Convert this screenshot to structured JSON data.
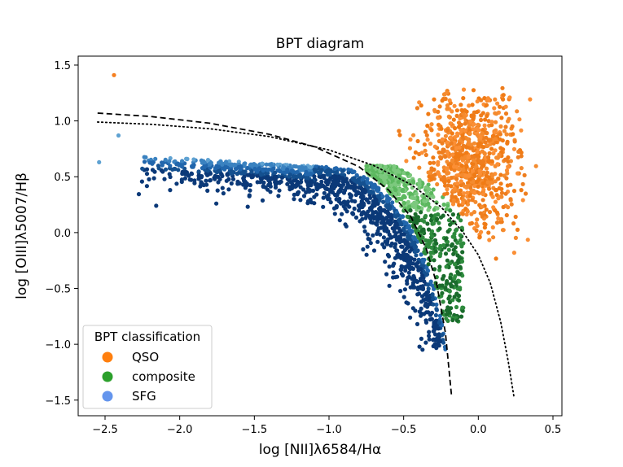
{
  "chart_data": {
    "type": "scatter",
    "title": "BPT diagram",
    "xlabel": "log [NII]λ6584/Hα",
    "ylabel": "log [OIII]λ5007/Hβ",
    "xlim": [
      -2.68,
      0.56
    ],
    "ylim": [
      -1.64,
      1.58
    ],
    "x_ticks": [
      -2.5,
      -2.0,
      -1.5,
      -1.0,
      -0.5,
      0.0,
      0.5
    ],
    "x_tick_labels": [
      "−2.5",
      "−2.0",
      "−1.5",
      "−1.0",
      "−0.5",
      "0.0",
      "0.5"
    ],
    "y_ticks": [
      -1.5,
      -1.0,
      -0.5,
      0.0,
      0.5,
      1.0,
      1.5
    ],
    "y_tick_labels": [
      "−1.5",
      "−1.0",
      "−0.5",
      "0.0",
      "0.5",
      "1.0",
      "1.5"
    ],
    "grid": false,
    "legend": {
      "title": "BPT classification",
      "placement": "lower-left",
      "entries": [
        {
          "label": "QSO",
          "color": "#ff7f0e"
        },
        {
          "label": "composite",
          "color": "#2ca02c"
        },
        {
          "label": "SFG",
          "color": "#6495ed"
        }
      ]
    },
    "lines": [
      {
        "style": "dashed",
        "x": [
          -2.55,
          -2.2,
          -1.8,
          -1.4,
          -1.1,
          -0.8,
          -0.6,
          -0.45,
          -0.35,
          -0.28,
          -0.22,
          -0.18
        ],
        "y": [
          1.07,
          1.04,
          0.98,
          0.88,
          0.77,
          0.59,
          0.38,
          0.14,
          -0.14,
          -0.45,
          -0.9,
          -1.45
        ]
      },
      {
        "style": "dotted",
        "x": [
          -2.55,
          -2.2,
          -1.8,
          -1.4,
          -1.0,
          -0.7,
          -0.45,
          -0.25,
          -0.1,
          0.0,
          0.08,
          0.15,
          0.2,
          0.24
        ],
        "y": [
          0.99,
          0.97,
          0.93,
          0.86,
          0.74,
          0.6,
          0.43,
          0.23,
          0.0,
          -0.2,
          -0.45,
          -0.8,
          -1.15,
          -1.48
        ]
      }
    ],
    "series": [
      {
        "name": "QSO",
        "color": "#f57f20",
        "center": [
          -0.05,
          0.6
        ],
        "spread": [
          0.17,
          0.35
        ]
      },
      {
        "name": "composite",
        "color": "#2e8b3d",
        "center": [
          -0.38,
          -0.1
        ],
        "spread": [
          0.12,
          0.35
        ]
      },
      {
        "name": "SFG",
        "color": "#1c5a9e",
        "center": [
          -0.85,
          0.2
        ],
        "spread": [
          0.45,
          0.35
        ]
      }
    ],
    "outliers": [
      {
        "x": -2.44,
        "y": 1.41,
        "class": "QSO"
      },
      {
        "x": -2.54,
        "y": 0.63,
        "class": "SFG"
      },
      {
        "x": -2.41,
        "y": 0.87,
        "class": "SFG"
      }
    ]
  }
}
